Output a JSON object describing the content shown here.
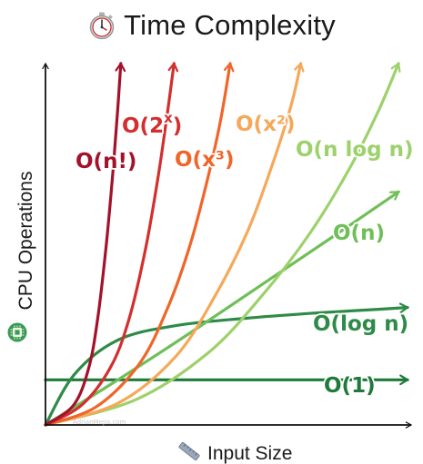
{
  "title": "Time Complexity",
  "title_icon": "stopwatch-icon",
  "watermark": "AdrianMejia.com",
  "chart_data": {
    "type": "line",
    "title": "Time Complexity",
    "xlabel": "Input Size",
    "ylabel": "CPU Operations",
    "xlabel_icon": "ruler-icon",
    "ylabel_icon": "cpu-chip-icon",
    "grid": false,
    "legend": "labels placed next to curves",
    "xlim": [
      0,
      10
    ],
    "ylim": [
      0,
      10
    ],
    "series": [
      {
        "name": "O(n!)",
        "label_base": "O(n!)",
        "label_sup": "",
        "color": "#a3122a",
        "kind": "factorial",
        "x": [
          0.0,
          0.78,
          1.2,
          1.45,
          1.68,
          1.88,
          2.0,
          2.08
        ],
        "y": [
          0.0,
          0.55,
          1.6,
          3.0,
          5.0,
          7.2,
          8.8,
          10.0
        ]
      },
      {
        "name": "O(2^x)",
        "label_base": "O(2",
        "label_sup": "x",
        "label_tail": ")",
        "color": "#d32f2f",
        "kind": "exponential",
        "x": [
          0.0,
          1.0,
          1.8,
          2.3,
          2.75,
          3.1,
          3.35,
          3.55
        ],
        "y": [
          0.0,
          0.55,
          1.6,
          2.9,
          4.8,
          6.8,
          8.5,
          10.0
        ]
      },
      {
        "name": "O(x³)",
        "label_base": "O(x³)",
        "label_sup": "",
        "color": "#f06529",
        "kind": "cubic",
        "x": [
          0.0,
          1.4,
          2.6,
          3.4,
          4.0,
          4.5,
          4.85,
          5.1
        ],
        "y": [
          0.0,
          0.5,
          1.7,
          3.3,
          5.0,
          6.9,
          8.5,
          10.0
        ]
      },
      {
        "name": "O(x²)",
        "label_base": "O(x²)",
        "label_sup": "",
        "color": "#f6a85a",
        "kind": "quadratic",
        "x": [
          0.0,
          2.0,
          3.6,
          4.7,
          5.6,
          6.3,
          6.8,
          7.05
        ],
        "y": [
          0.0,
          0.6,
          1.9,
          3.6,
          5.4,
          7.3,
          8.9,
          10.0
        ]
      },
      {
        "name": "O(n log n)",
        "label_base": "O(n log n)",
        "label_sup": "",
        "color": "#9dd16b",
        "kind": "nlogn",
        "x": [
          0.0,
          2.5,
          4.5,
          6.0,
          7.3,
          8.4,
          9.2,
          9.75
        ],
        "y": [
          0.0,
          0.7,
          2.0,
          3.6,
          5.3,
          7.1,
          8.7,
          10.0
        ]
      },
      {
        "name": "O(n)",
        "label_base": "O(n)",
        "label_sup": "",
        "color": "#6fbf58",
        "kind": "linear",
        "x": [
          0.0,
          2.0,
          4.0,
          6.0,
          8.0,
          9.75
        ],
        "y": [
          0.0,
          1.25,
          2.55,
          3.9,
          5.25,
          6.45
        ]
      },
      {
        "name": "O(log n)",
        "label_base": "O(log n)",
        "label_sup": "",
        "color": "#2e8b47",
        "kind": "log",
        "x": [
          0.0,
          0.8,
          2.0,
          3.6,
          5.5,
          7.5,
          9.2,
          10.0
        ],
        "y": [
          0.0,
          1.4,
          2.35,
          2.75,
          2.95,
          3.1,
          3.2,
          3.25
        ]
      },
      {
        "name": "O(1)",
        "label_base": "O(1)",
        "label_sup": "",
        "color": "#1f7a3a",
        "kind": "constant",
        "x": [
          0.0,
          10.0
        ],
        "y": [
          1.25,
          1.25
        ]
      }
    ]
  }
}
